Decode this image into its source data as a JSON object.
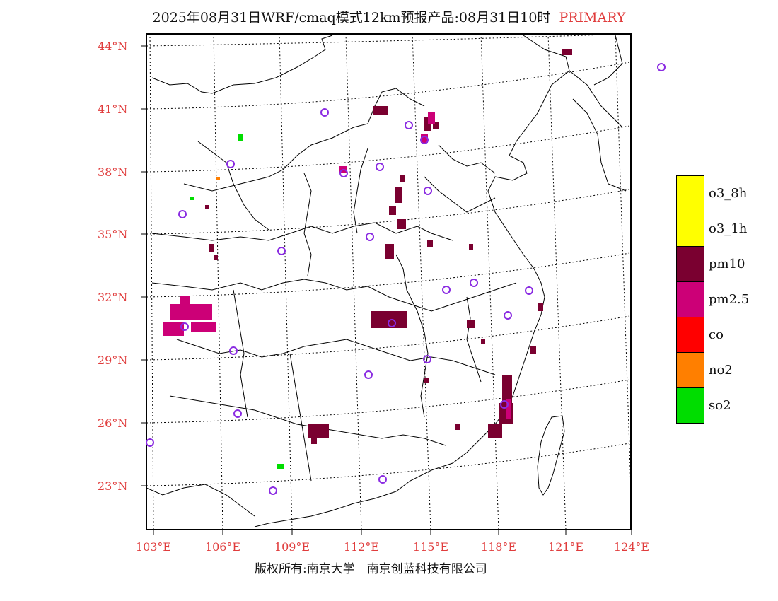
{
  "title": {
    "text": "2025年08月31日WRF/cmaq模式12km预报产品:08月31日10时",
    "tag": "PRIMARY",
    "tag_color": "#e03c3c"
  },
  "lat_labels": [
    "44°N",
    "41°N",
    "38°N",
    "35°N",
    "32°N",
    "29°N",
    "26°N",
    "23°N"
  ],
  "lon_labels": [
    "103°E",
    "106°E",
    "109°E",
    "112°E",
    "115°E",
    "118°E",
    "121°E",
    "124°E"
  ],
  "legend": [
    {
      "label": "o3_8h",
      "color": "#ffff00"
    },
    {
      "label": "o3_1h",
      "color": "#ffff00"
    },
    {
      "label": "pm10",
      "color": "#7a0030"
    },
    {
      "label": "pm2.5",
      "color": "#cc0077"
    },
    {
      "label": "co",
      "color": "#ff0000"
    },
    {
      "label": "no2",
      "color": "#ff7f00"
    },
    {
      "label": "so2",
      "color": "#00dd00"
    }
  ],
  "footer": {
    "left": "版权所有:南京大学",
    "right": "南京创蓝科技有限公司"
  },
  "colors": {
    "frame": "#000000",
    "axis_label": "#e03c3c",
    "station_marker": "#8a2be2",
    "pm10": "#7a0030",
    "pm25": "#cc0077",
    "so2": "#00dd00",
    "no2": "#ff7f00"
  }
}
